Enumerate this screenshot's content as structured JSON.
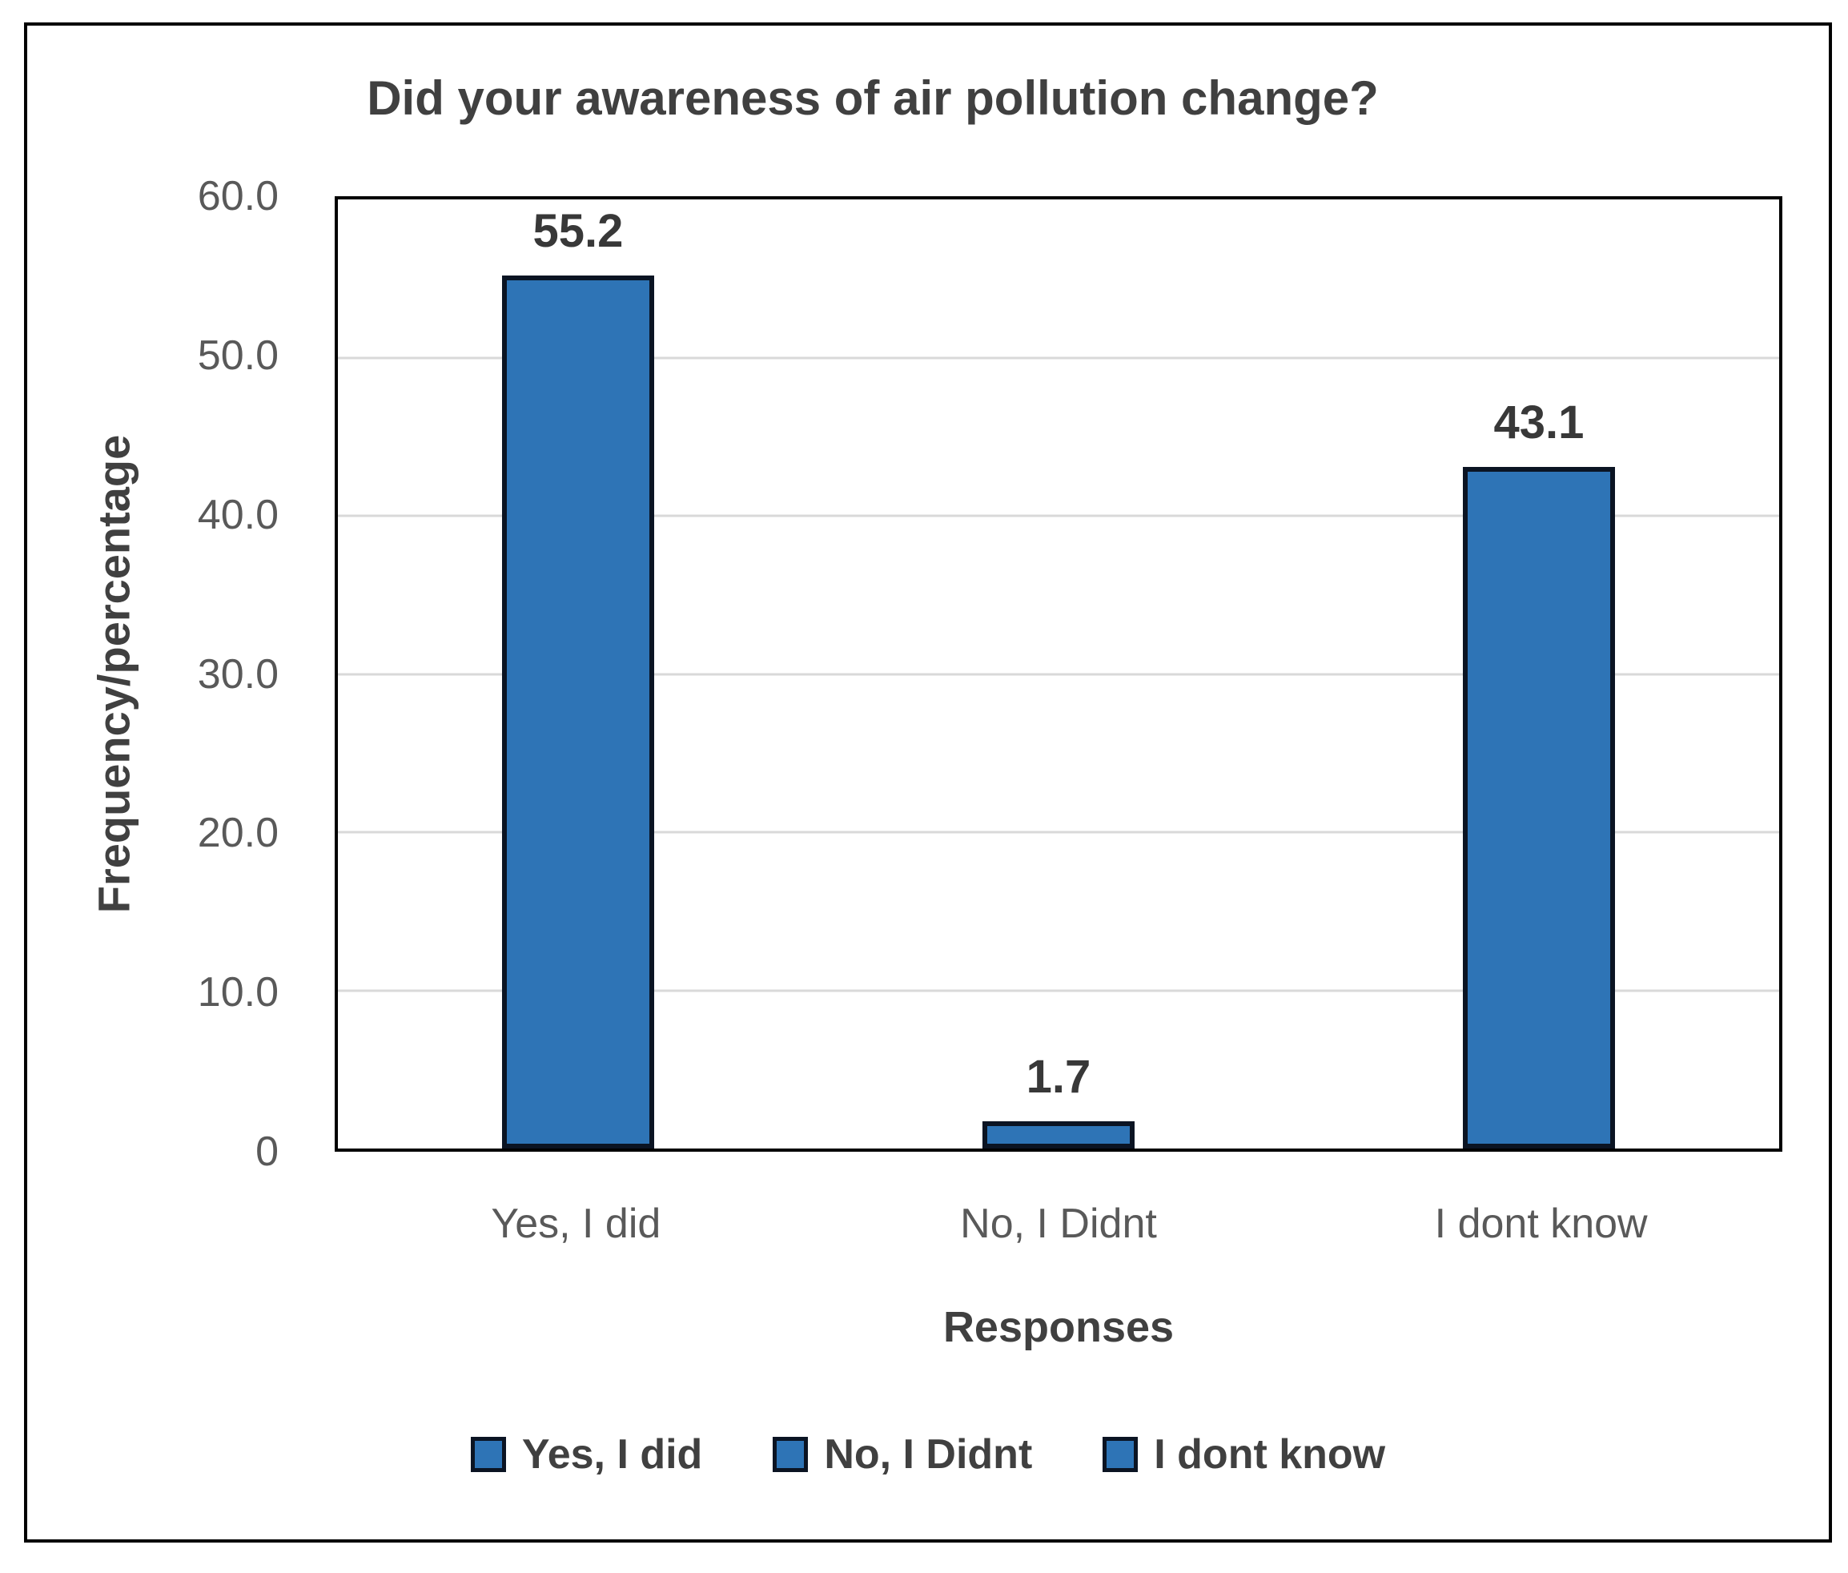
{
  "chart_data": {
    "type": "bar",
    "title": "Did your awareness of air pollution change?",
    "xlabel": "Responses",
    "ylabel": "Frequency/percentage",
    "categories": [
      "Yes, I did",
      "No, I Didnt",
      "I dont know"
    ],
    "values": [
      55.2,
      1.7,
      43.1
    ],
    "data_labels": [
      "55.2",
      "1.7",
      "43.1"
    ],
    "ylim": [
      0,
      60
    ],
    "yticks": [
      {
        "label": "60.0",
        "value": 60
      },
      {
        "label": "50.0",
        "value": 50
      },
      {
        "label": "40.0",
        "value": 40
      },
      {
        "label": "30.0",
        "value": 30
      },
      {
        "label": "20.0",
        "value": 20
      },
      {
        "label": "10.0",
        "value": 10
      },
      {
        "label": "0",
        "value": 0
      }
    ],
    "grid": true,
    "legend": {
      "position": "bottom",
      "entries": [
        "Yes, I did",
        "No, I Didnt",
        "I dont know"
      ]
    },
    "colors": {
      "bar_fill": "#2e74b6",
      "bar_border": "#0b1423",
      "gridline": "#d9d9d9",
      "tick_text": "#595959",
      "title_text": "#404040",
      "plot_border": "#000000"
    }
  }
}
